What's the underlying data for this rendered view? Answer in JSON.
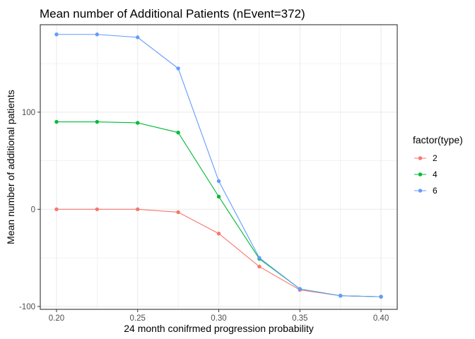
{
  "chart_data": {
    "type": "line",
    "title": "Mean number of Additional Patients (nEvent=372)",
    "xlabel": "24 month conifrmed progression probability",
    "ylabel": "Mean number of additional patients",
    "xlim": [
      0.19,
      0.41
    ],
    "ylim": [
      -103,
      190
    ],
    "x_ticks": [
      0.2,
      0.25,
      0.3,
      0.35,
      0.4
    ],
    "x_tick_labels": [
      "0.20",
      "0.25",
      "0.30",
      "0.35",
      "0.40"
    ],
    "y_ticks": [
      -100,
      0,
      100
    ],
    "y_tick_labels": [
      "-100",
      "0",
      "100"
    ],
    "grid": true,
    "legend": {
      "title": "factor(type)",
      "position": "right"
    },
    "x": [
      0.2,
      0.225,
      0.25,
      0.275,
      0.3,
      0.325,
      0.35,
      0.375,
      0.4
    ],
    "series": [
      {
        "name": "2",
        "color": "#F8766D",
        "values": [
          0,
          0,
          0,
          -3,
          -25,
          -59,
          -83,
          -89,
          -90
        ]
      },
      {
        "name": "4",
        "color": "#00BA38",
        "values": [
          90,
          90,
          89,
          79,
          13,
          -51,
          -82,
          -89,
          -90
        ]
      },
      {
        "name": "6",
        "color": "#619CFF",
        "values": [
          180,
          180,
          177,
          145,
          29,
          -50,
          -82,
          -89,
          -90
        ]
      }
    ]
  }
}
